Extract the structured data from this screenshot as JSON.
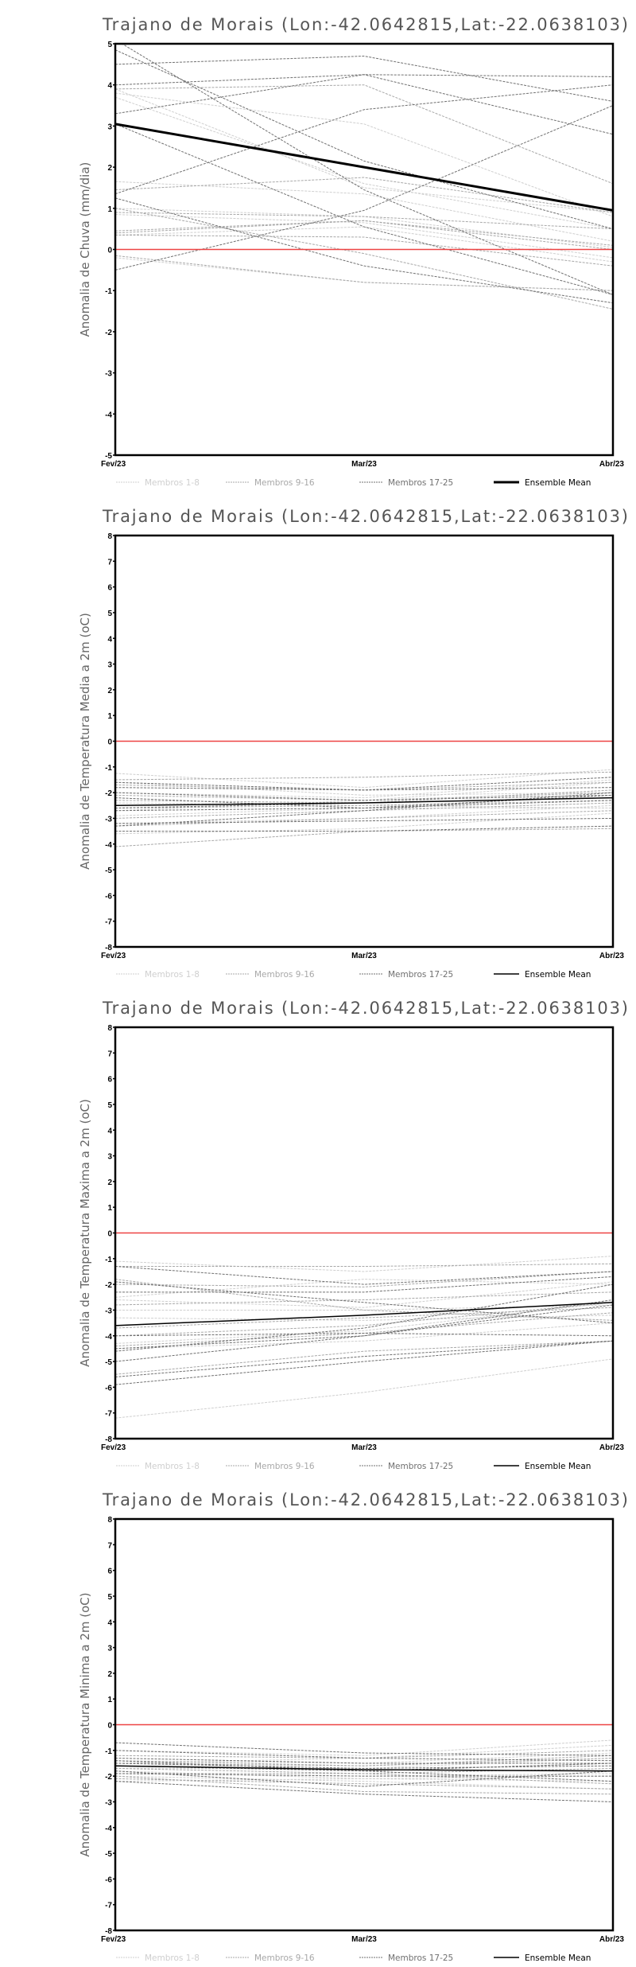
{
  "colors": {
    "members_1_8": "#cfcfcf",
    "members_9_16": "#a8a8a8",
    "members_17_25": "#707070",
    "mean": "#000000",
    "zero_line": "#ee4444",
    "title": "#555555"
  },
  "legend": [
    "Membros 1-8",
    "Membros 9-16",
    "Membros 17-25",
    "Ensemble Mean"
  ],
  "chart_data": [
    {
      "type": "line",
      "title": "Trajano de Morais (Lon:-42.0642815,Lat:-22.0638103)",
      "ylabel": "Anomalia de Chuva (mm/dia)",
      "categories": [
        "Fev/23",
        "Mar/23",
        "Abr/23"
      ],
      "ylim": [
        -5,
        5
      ],
      "yticks": [
        "-5",
        "-4",
        "-3",
        "-2",
        "-1",
        "0",
        "1",
        "2",
        "3",
        "4",
        "5"
      ],
      "mean_width": 3,
      "groups": [
        {
          "name": "Membros 1-8",
          "series": [
            [
              3.8,
              3.05,
              0.8
            ],
            [
              3.7,
              1.6,
              0.5
            ],
            [
              1.65,
              1.35,
              0.2
            ],
            [
              0.85,
              0.65,
              -0.2
            ],
            [
              0.35,
              0.55,
              -0.3
            ],
            [
              -0.2,
              -0.8,
              -1.0
            ],
            [
              3.9,
              1.5,
              0.9
            ],
            [
              1.0,
              0.8,
              0.05
            ]
          ]
        },
        {
          "name": "Membros 9-16",
          "series": [
            [
              3.9,
              4.0,
              1.6
            ],
            [
              0.9,
              0.8,
              0.5
            ],
            [
              0.4,
              0.7,
              0.1
            ],
            [
              0.35,
              0.3,
              -0.4
            ],
            [
              1.0,
              -0.1,
              -1.45
            ],
            [
              1.45,
              1.75,
              0.9
            ],
            [
              0.45,
              0.7,
              0.0
            ],
            [
              -0.15,
              -0.8,
              -1.0
            ]
          ]
        },
        {
          "name": "Membros 17-25",
          "series": [
            [
              4.85,
              2.15,
              0.5
            ],
            [
              5.1,
              1.45,
              -1.1
            ],
            [
              4.5,
              4.7,
              3.6
            ],
            [
              4.0,
              4.25,
              4.2
            ],
            [
              3.3,
              4.25,
              2.8
            ],
            [
              1.35,
              3.4,
              4.0
            ],
            [
              -0.5,
              0.95,
              3.5
            ],
            [
              3.05,
              0.55,
              -1.1
            ],
            [
              1.25,
              -0.4,
              -1.3
            ]
          ]
        }
      ],
      "mean": [
        3.05,
        2.0,
        0.95
      ]
    },
    {
      "type": "line",
      "title": "Trajano de Morais (Lon:-42.0642815,Lat:-22.0638103)",
      "ylabel": "Anomalia de Temperatura Media a 2m (oC)",
      "categories": [
        "Fev/23",
        "Mar/23",
        "Abr/23"
      ],
      "ylim": [
        -8,
        8
      ],
      "yticks": [
        "-8",
        "-7",
        "-6",
        "-5",
        "-4",
        "-3",
        "-2",
        "-1",
        "0",
        "1",
        "2",
        "3",
        "4",
        "5",
        "6",
        "7",
        "8"
      ],
      "mean_width": 1.5,
      "groups": [
        {
          "name": "Membros 1-8",
          "series": [
            [
              -1.25,
              -1.8,
              -1.1
            ],
            [
              -2.0,
              -2.2,
              -1.5
            ],
            [
              -2.9,
              -2.6,
              -2.6
            ],
            [
              -3.2,
              -3.0,
              -2.5
            ],
            [
              -1.6,
              -2.1,
              -2.0
            ],
            [
              -2.4,
              -2.5,
              -2.6
            ],
            [
              -3.6,
              -3.4,
              -2.8
            ],
            [
              -2.7,
              -2.3,
              -1.6
            ]
          ]
        },
        {
          "name": "Membros 9-16",
          "series": [
            [
              -1.5,
              -1.4,
              -1.2
            ],
            [
              -1.7,
              -1.9,
              -1.6
            ],
            [
              -2.1,
              -2.3,
              -2.0
            ],
            [
              -2.6,
              -2.5,
              -2.3
            ],
            [
              -3.0,
              -2.7,
              -2.4
            ],
            [
              -3.3,
              -3.0,
              -2.7
            ],
            [
              -4.1,
              -3.5,
              -3.4
            ],
            [
              -2.3,
              -2.4,
              -1.9
            ]
          ]
        },
        {
          "name": "Membros 17-25",
          "series": [
            [
              -1.6,
              -1.9,
              -1.4
            ],
            [
              -1.8,
              -1.9,
              -1.8
            ],
            [
              -2.0,
              -2.3,
              -2.1
            ],
            [
              -2.2,
              -2.6,
              -2.1
            ],
            [
              -2.6,
              -2.4,
              -2.2
            ],
            [
              -2.7,
              -2.6,
              -2.3
            ],
            [
              -3.2,
              -3.1,
              -3.0
            ],
            [
              -3.5,
              -3.5,
              -3.3
            ],
            [
              -3.3,
              -2.7,
              -2.0
            ]
          ]
        }
      ],
      "mean": [
        -2.5,
        -2.4,
        -2.2
      ]
    },
    {
      "type": "line",
      "title": "Trajano de Morais (Lon:-42.0642815,Lat:-22.0638103)",
      "ylabel": "Anomalia de Temperatura Maxima a 2m (oC)",
      "categories": [
        "Fev/23",
        "Mar/23",
        "Abr/23"
      ],
      "ylim": [
        -8,
        8
      ],
      "yticks": [
        "-8",
        "-7",
        "-6",
        "-5",
        "-4",
        "-3",
        "-2",
        "-1",
        "0",
        "1",
        "2",
        "3",
        "4",
        "5",
        "6",
        "7",
        "8"
      ],
      "mean_width": 1.5,
      "groups": [
        {
          "name": "Membros 1-8",
          "series": [
            [
              -1.1,
              -1.5,
              -0.9
            ],
            [
              -2.5,
              -1.8,
              -2.0
            ],
            [
              -3.0,
              -3.0,
              -2.8
            ],
            [
              -4.3,
              -3.8,
              -2.7
            ],
            [
              -4.5,
              -4.2,
              -3.5
            ],
            [
              -3.3,
              -3.4,
              -3.2
            ],
            [
              -2.6,
              -2.9,
              -1.9
            ],
            [
              -7.2,
              -6.2,
              -4.9
            ]
          ]
        },
        {
          "name": "Membros 9-16",
          "series": [
            [
              -1.3,
              -1.3,
              -1.2
            ],
            [
              -2.0,
              -2.1,
              -1.5
            ],
            [
              -2.8,
              -2.6,
              -2.3
            ],
            [
              -3.7,
              -3.3,
              -2.9
            ],
            [
              -4.4,
              -3.9,
              -3.1
            ],
            [
              -4.0,
              -3.6,
              -2.7
            ],
            [
              -5.5,
              -4.6,
              -4.2
            ],
            [
              -1.8,
              -3.0,
              -3.4
            ]
          ]
        },
        {
          "name": "Membros 17-25",
          "series": [
            [
              -1.3,
              -2.0,
              -1.5
            ],
            [
              -1.9,
              -2.7,
              -3.5
            ],
            [
              -4.6,
              -3.7,
              -2.0
            ],
            [
              -5.0,
              -4.0,
              -2.6
            ],
            [
              -5.9,
              -5.0,
              -4.2
            ],
            [
              -5.6,
              -4.8,
              -4.2
            ],
            [
              -4.5,
              -4.0,
              -2.8
            ],
            [
              -2.3,
              -2.3,
              -1.7
            ],
            [
              -4.0,
              -3.9,
              -4.0
            ]
          ]
        }
      ],
      "mean": [
        -3.6,
        -3.2,
        -2.7
      ]
    },
    {
      "type": "line",
      "title": "Trajano de Morais (Lon:-42.0642815,Lat:-22.0638103)",
      "ylabel": "Anomalia de Temperatura Minima a 2m (oC)",
      "categories": [
        "Fev/23",
        "Mar/23",
        "Abr/23"
      ],
      "ylim": [
        -8,
        8
      ],
      "yticks": [
        "-8",
        "-7",
        "-6",
        "-5",
        "-4",
        "-3",
        "-2",
        "-1",
        "0",
        "1",
        "2",
        "3",
        "4",
        "5",
        "6",
        "7",
        "8"
      ],
      "mean_width": 1.5,
      "groups": [
        {
          "name": "Membros 1-8",
          "series": [
            [
              -1.0,
              -1.2,
              -0.6
            ],
            [
              -1.4,
              -1.5,
              -1.1
            ],
            [
              -1.9,
              -2.0,
              -1.9
            ],
            [
              -2.2,
              -2.1,
              -2.2
            ],
            [
              -1.7,
              -1.7,
              -1.3
            ],
            [
              -2.0,
              -2.2,
              -2.5
            ],
            [
              -1.5,
              -1.3,
              -0.8
            ],
            [
              -1.8,
              -2.1,
              -2.0
            ]
          ]
        },
        {
          "name": "Membros 9-16",
          "series": [
            [
              -1.2,
              -1.3,
              -1.0
            ],
            [
              -1.5,
              -1.6,
              -1.3
            ],
            [
              -1.6,
              -1.8,
              -1.5
            ],
            [
              -1.9,
              -1.9,
              -2.3
            ],
            [
              -2.1,
              -2.3,
              -2.5
            ],
            [
              -1.4,
              -1.6,
              -1.2
            ],
            [
              -1.7,
              -1.9,
              -1.7
            ],
            [
              -2.0,
              -2.6,
              -2.7
            ]
          ]
        },
        {
          "name": "Membros 17-25",
          "series": [
            [
              -0.7,
              -1.1,
              -1.2
            ],
            [
              -1.0,
              -1.3,
              -1.4
            ],
            [
              -1.3,
              -1.5,
              -1.5
            ],
            [
              -1.5,
              -1.7,
              -1.6
            ],
            [
              -1.6,
              -1.8,
              -2.2
            ],
            [
              -1.8,
              -2.4,
              -1.8
            ],
            [
              -2.2,
              -2.7,
              -3.0
            ],
            [
              -1.4,
              -1.8,
              -1.5
            ],
            [
              -1.9,
              -2.0,
              -2.0
            ]
          ]
        }
      ],
      "mean": [
        -1.6,
        -1.75,
        -1.8
      ]
    }
  ]
}
